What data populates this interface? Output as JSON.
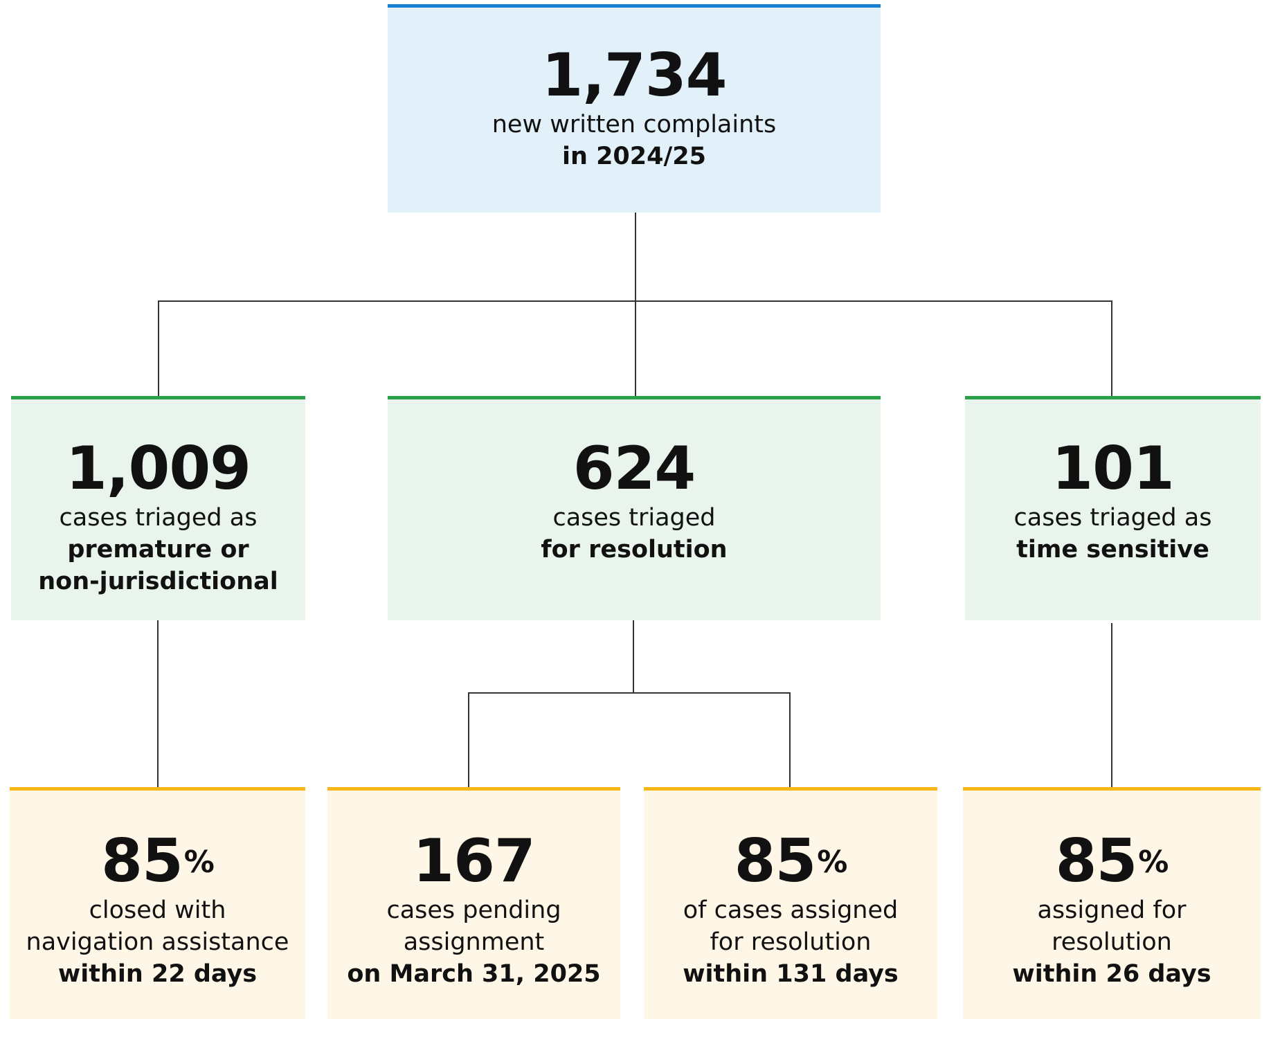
{
  "root": {
    "value": "1,734",
    "line1": "new written complaints",
    "line2": "in 2024/25"
  },
  "triage": [
    {
      "value": "1,009",
      "line1": "cases triaged as",
      "line2": "premature or",
      "line3": "non-jurisdictional"
    },
    {
      "value": "624",
      "line1": "cases triaged",
      "line2": "for resolution"
    },
    {
      "value": "101",
      "line1": "cases triaged as",
      "line2": "time sensitive"
    }
  ],
  "outcomes": [
    {
      "value": "85",
      "unit": "%",
      "line1": "closed with",
      "line2": "navigation assistance",
      "line3": "within 22 days"
    },
    {
      "value": "167",
      "line1": "cases pending",
      "line2": "assignment",
      "line3": "on March 31, 2025"
    },
    {
      "value": "85",
      "unit": "%",
      "line1": "of cases assigned",
      "line2": "for resolution",
      "line3": "within 131 days"
    },
    {
      "value": "85",
      "unit": "%",
      "line1": "assigned for",
      "line2": "resolution",
      "line3": "within 26 days"
    }
  ],
  "colors": {
    "root_accent": "#1b7fd1",
    "triage_accent": "#2aa148",
    "outcome_accent": "#fbb717",
    "connector": "#333333"
  }
}
